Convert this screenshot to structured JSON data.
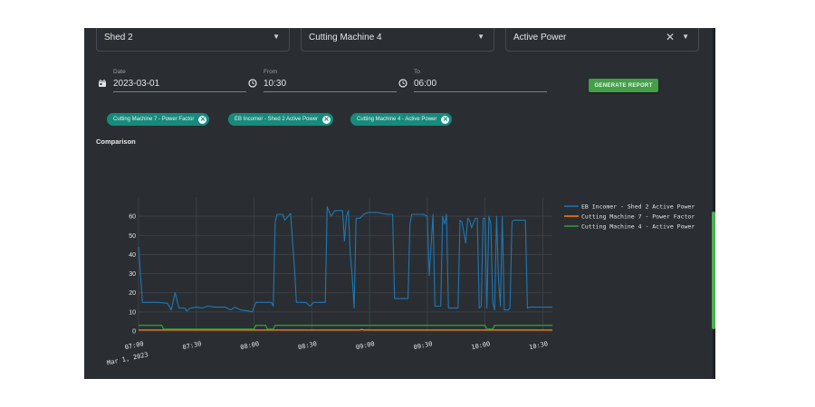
{
  "filters": {
    "shed": {
      "value": "Shed 2"
    },
    "machine": {
      "value": "Cutting Machine 4"
    },
    "parameter": {
      "value": "Active Power"
    }
  },
  "date_range": {
    "date_label": "Date",
    "date_value": "2023-03-01",
    "from_label": "From",
    "from_value": "10:30",
    "to_label": "To",
    "to_value": "06:00"
  },
  "generate_button": "GENERATE REPORT",
  "chips": [
    {
      "label": "Cutting Machine 7 - Power Factor"
    },
    {
      "label": "EB Incomer - Shed 2 Active Power"
    },
    {
      "label": "Cutting Machine 4 - Active Power"
    }
  ],
  "section_title": "Comparison",
  "colors": {
    "panel_bg": "#2a2e32",
    "accent_green": "#43a047",
    "chip_teal": "#178a7b"
  },
  "chart_data": {
    "type": "line",
    "ylim": [
      0,
      70
    ],
    "yticks": [
      "0",
      "10",
      "20",
      "30",
      "40",
      "50",
      "60"
    ],
    "xlim": [
      "07:00",
      "10:35"
    ],
    "xticks": [
      "07:00",
      "07:30",
      "08:00",
      "08:30",
      "09:00",
      "09:30",
      "10:00",
      "10:30"
    ],
    "x_sublabel": "Mar 1, 2023",
    "grid": true,
    "legend_position": "right",
    "series": [
      {
        "name": "EB Incomer - Shed 2 Active Power",
        "color": "#1f77b4",
        "points": [
          [
            "07:00",
            44
          ],
          [
            "07:02",
            15
          ],
          [
            "07:10",
            15
          ],
          [
            "07:15",
            14.5
          ],
          [
            "07:17",
            11
          ],
          [
            "07:19",
            20
          ],
          [
            "07:21",
            12
          ],
          [
            "07:24",
            12
          ],
          [
            "07:25",
            10.5
          ],
          [
            "07:27",
            12
          ],
          [
            "07:30",
            12.5
          ],
          [
            "07:33",
            12
          ],
          [
            "07:36",
            13
          ],
          [
            "07:40",
            12.5
          ],
          [
            "07:45",
            12.5
          ],
          [
            "07:48",
            11
          ],
          [
            "07:50",
            12.5
          ],
          [
            "07:53",
            11
          ],
          [
            "07:57",
            10.5
          ],
          [
            "07:59",
            10
          ],
          [
            "08:01",
            15
          ],
          [
            "08:05",
            15
          ],
          [
            "08:09",
            15
          ],
          [
            "08:10",
            13
          ],
          [
            "08:11",
            57
          ],
          [
            "08:12",
            61
          ],
          [
            "08:15",
            61
          ],
          [
            "08:16",
            58
          ],
          [
            "08:19",
            61.5
          ],
          [
            "08:20",
            47
          ],
          [
            "08:21",
            33
          ],
          [
            "08:22",
            15
          ],
          [
            "08:27",
            15
          ],
          [
            "08:29",
            13
          ],
          [
            "08:31",
            15
          ],
          [
            "08:37",
            15
          ],
          [
            "08:38",
            65
          ],
          [
            "08:40",
            60
          ],
          [
            "08:42",
            63
          ],
          [
            "08:44",
            63
          ],
          [
            "08:46",
            63
          ],
          [
            "08:47",
            47
          ],
          [
            "08:48",
            60
          ],
          [
            "08:49",
            63
          ],
          [
            "08:50",
            40
          ],
          [
            "08:51",
            29
          ],
          [
            "08:52",
            12
          ],
          [
            "08:53",
            59
          ],
          [
            "08:55",
            59
          ],
          [
            "08:57",
            61
          ],
          [
            "08:59",
            62
          ],
          [
            "09:04",
            62
          ],
          [
            "09:09",
            61
          ],
          [
            "09:10",
            61
          ],
          [
            "09:12",
            61
          ],
          [
            "09:13",
            17
          ],
          [
            "09:20",
            17
          ],
          [
            "09:21",
            56
          ],
          [
            "09:22",
            61
          ],
          [
            "09:25",
            61
          ],
          [
            "09:28",
            61
          ],
          [
            "09:30",
            60
          ],
          [
            "09:31",
            29
          ],
          [
            "09:33",
            61
          ],
          [
            "09:34",
            13
          ],
          [
            "09:37",
            13
          ],
          [
            "09:38",
            60
          ],
          [
            "09:39",
            56
          ],
          [
            "09:40",
            61
          ],
          [
            "09:41",
            12
          ],
          [
            "09:44",
            12
          ],
          [
            "09:46",
            12
          ],
          [
            "09:47",
            58
          ],
          [
            "09:48",
            57
          ],
          [
            "09:50",
            46
          ],
          [
            "09:51",
            59
          ],
          [
            "09:52",
            58
          ],
          [
            "09:53",
            54
          ],
          [
            "09:55",
            59
          ],
          [
            "09:56",
            59
          ],
          [
            "09:57",
            12
          ],
          [
            "09:58",
            13
          ],
          [
            "09:59",
            59
          ],
          [
            "10:00",
            59
          ],
          [
            "10:01",
            12
          ],
          [
            "10:02",
            60
          ],
          [
            "10:03",
            56
          ],
          [
            "10:04",
            15
          ],
          [
            "10:05",
            11
          ],
          [
            "10:06",
            60
          ],
          [
            "10:07",
            27
          ],
          [
            "10:08",
            13
          ],
          [
            "10:09",
            60
          ],
          [
            "10:10",
            11
          ],
          [
            "10:12",
            11
          ],
          [
            "10:13",
            12
          ],
          [
            "10:14",
            57
          ],
          [
            "10:15",
            58
          ],
          [
            "10:18",
            58
          ],
          [
            "10:21",
            58
          ],
          [
            "10:22",
            12
          ],
          [
            "10:23",
            12.5
          ],
          [
            "10:25",
            12.5
          ],
          [
            "10:30",
            12.5
          ],
          [
            "10:35",
            12.5
          ]
        ]
      },
      {
        "name": "Cutting Machine 7 - Power Factor",
        "color": "#ff7f0e",
        "points": [
          [
            "07:00",
            0.5
          ],
          [
            "08:55",
            0.5
          ],
          [
            "08:56",
            0.8
          ],
          [
            "08:57",
            0.5
          ],
          [
            "10:00",
            0.5
          ],
          [
            "10:05",
            0.5
          ],
          [
            "10:35",
            0.5
          ]
        ]
      },
      {
        "name": "Cutting Machine 4 - Active Power",
        "color": "#2ca02c",
        "points": [
          [
            "07:00",
            3
          ],
          [
            "07:12",
            3
          ],
          [
            "07:13",
            1
          ],
          [
            "08:00",
            1
          ],
          [
            "08:01",
            3
          ],
          [
            "08:06",
            3
          ],
          [
            "08:07",
            1
          ],
          [
            "08:10",
            1
          ],
          [
            "08:11",
            3
          ],
          [
            "10:00",
            3
          ],
          [
            "10:01",
            1
          ],
          [
            "10:04",
            1
          ],
          [
            "10:05",
            3
          ],
          [
            "10:35",
            3
          ]
        ]
      }
    ]
  }
}
